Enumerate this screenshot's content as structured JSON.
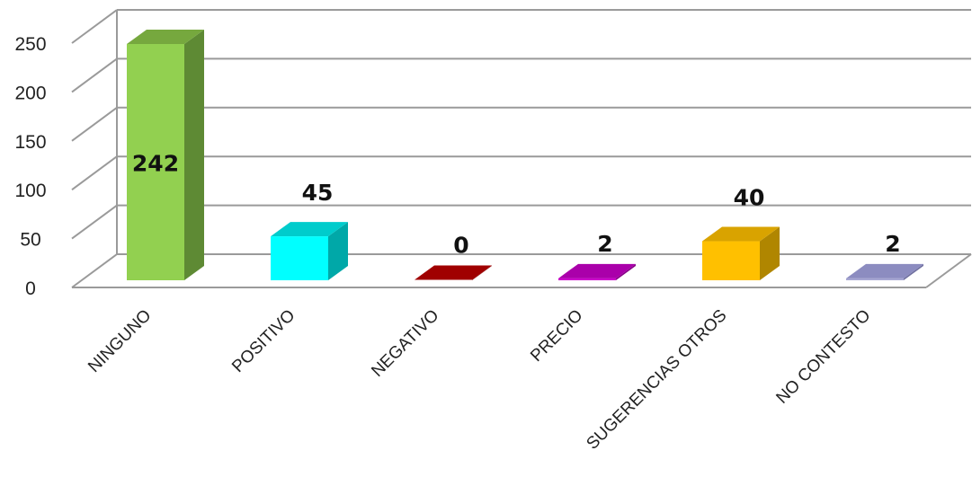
{
  "chart_data": {
    "type": "bar",
    "categories": [
      "NINGUNO",
      "POSITIVO",
      "NEGATIVO",
      "PRECIO",
      "SUGERENCIAS OTROS",
      "NO CONTESTO"
    ],
    "values": [
      242,
      45,
      0,
      2,
      40,
      2
    ],
    "data_labels": [
      "242",
      "45",
      "0",
      "2",
      "40",
      "2"
    ],
    "ylim": [
      0,
      250
    ],
    "y_ticks": [
      "0",
      "50",
      "100",
      "150",
      "200",
      "250"
    ],
    "grid": true,
    "legend": "none",
    "style": "3d-column",
    "colors": {
      "front": [
        "#92D050",
        "#00FFFF",
        "#C00000",
        "#CC00CC",
        "#FFC000",
        "#A6A6D2"
      ],
      "side": [
        "#5E8A34",
        "#00A8A8",
        "#800000",
        "#880088",
        "#B08600",
        "#7070A0"
      ],
      "top": [
        "#76A83E",
        "#00CCCC",
        "#A00000",
        "#AA00AA",
        "#D9A300",
        "#8C8CC0"
      ]
    }
  }
}
